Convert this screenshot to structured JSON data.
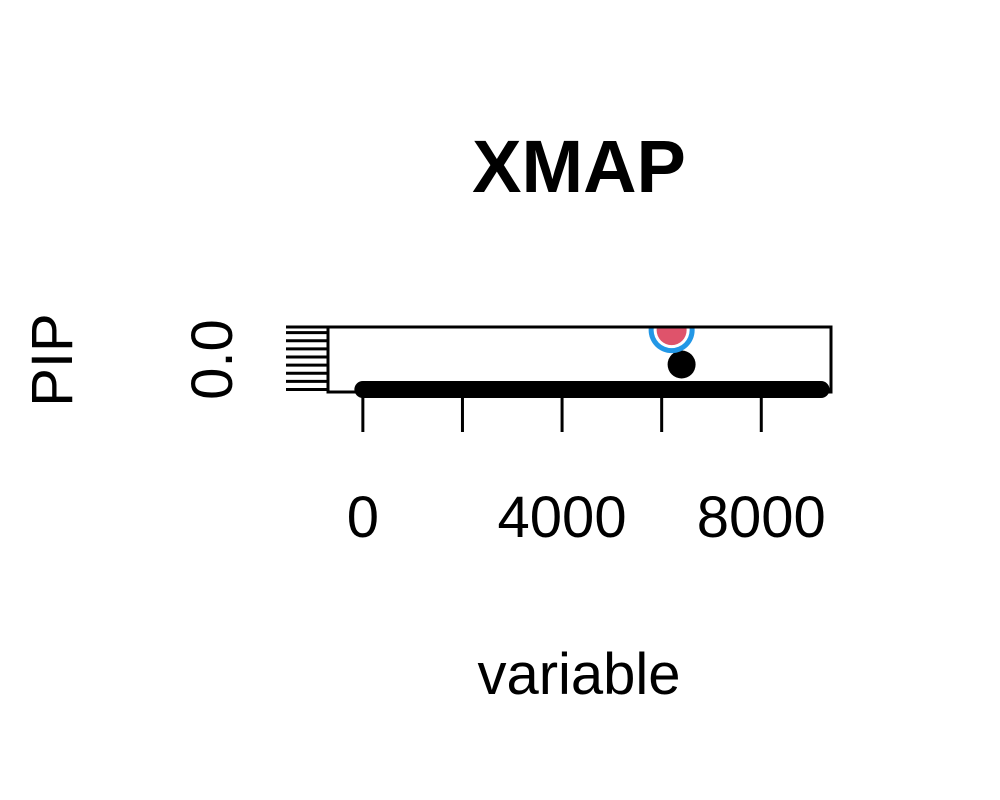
{
  "chart_data": {
    "type": "scatter",
    "title": "XMAP",
    "xlabel": "variable",
    "ylabel": "PIP",
    "x_ticks": [
      0,
      4000,
      8000
    ],
    "y_ticks": [
      0.0
    ],
    "y_tick_labels": [
      "0.0"
    ],
    "xlim": [
      -700,
      9400
    ],
    "ylim": [
      -0.04,
      1.0
    ],
    "baseline": {
      "x_start": 0,
      "x_end": 9200,
      "y": 0.0,
      "note_count_approx": 9200
    },
    "points": [
      {
        "x": 6400,
        "y": 0.4,
        "fill": "#000000"
      }
    ],
    "highlight_points": [
      {
        "x": 6200,
        "y": 0.95,
        "fill": "#DF536B",
        "ring": "#2297E6"
      }
    ],
    "colors": {
      "axis": "#000000",
      "points": "#000000",
      "highlight_fill": "#DF536B",
      "highlight_ring": "#2297E6"
    },
    "grid": false,
    "legend": "none"
  }
}
